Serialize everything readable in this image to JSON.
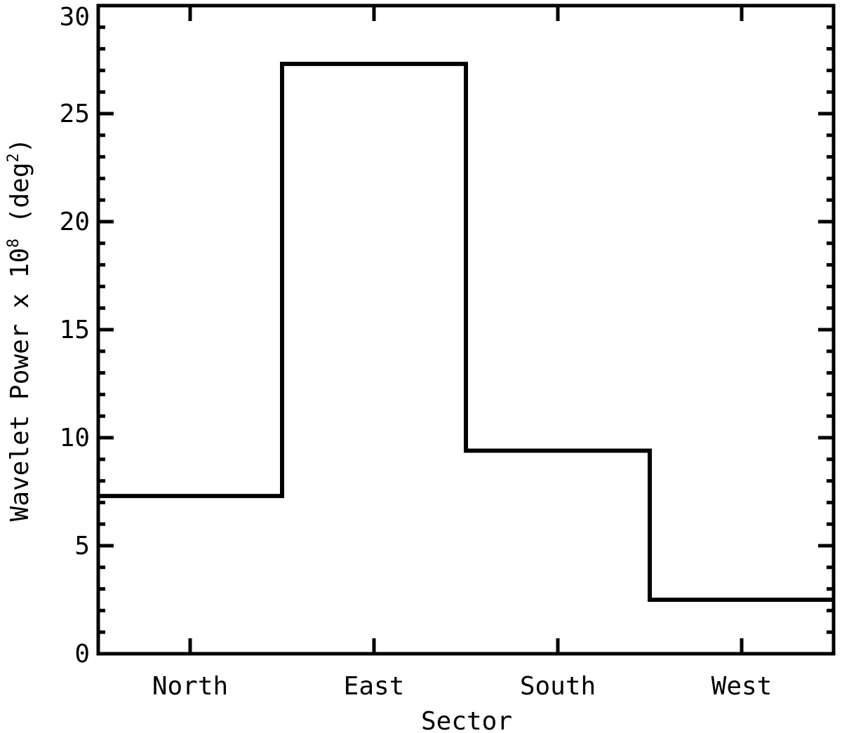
{
  "chart_data": {
    "type": "bar",
    "style": "step-histogram",
    "categories": [
      "North",
      "East",
      "South",
      "West"
    ],
    "values": [
      7.3,
      27.3,
      9.4,
      2.5
    ],
    "xlabel": "Sector",
    "ylabel": {
      "prefix": "Wavelet Power x 10",
      "exp": "8",
      "unit_open": " (deg",
      "unit_exp": "2",
      "unit_close": ")"
    },
    "ylim": [
      0,
      30
    ],
    "yticks": [
      "0",
      "5",
      "10",
      "15",
      "20",
      "25",
      "30"
    ],
    "grid": false,
    "legend": "none",
    "line_color": "#000000"
  }
}
